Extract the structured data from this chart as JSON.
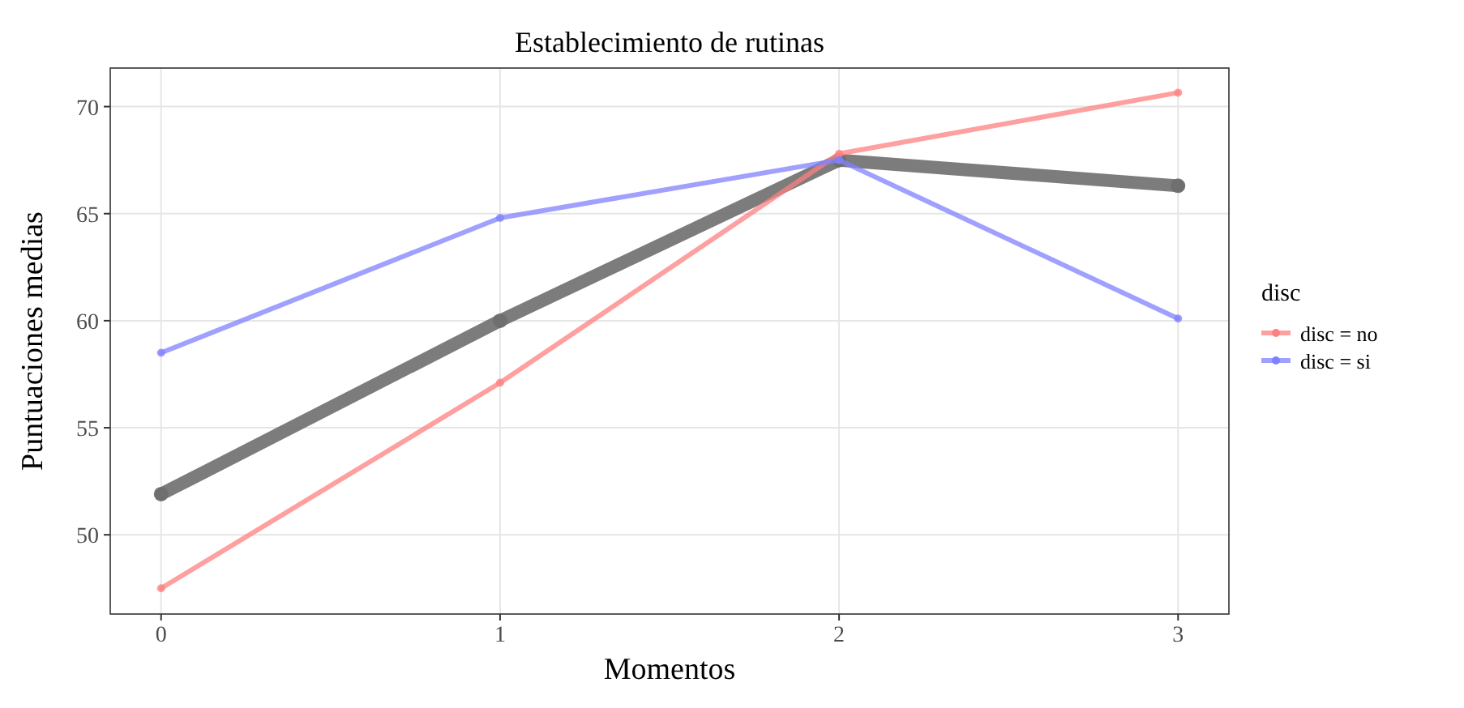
{
  "chart_data": {
    "type": "line",
    "title": "Establecimiento de rutinas",
    "xlabel": "Momentos",
    "ylabel": "Puntuaciones medias",
    "legend_title": "disc",
    "x": [
      0,
      1,
      2,
      3
    ],
    "series": [
      {
        "name": "disc = no",
        "color": "#ff8080",
        "values": [
          47.5,
          57.1,
          67.8,
          70.65
        ]
      },
      {
        "name": "disc = si",
        "color": "#8080ff",
        "values": [
          58.5,
          64.8,
          67.5,
          60.1
        ]
      },
      {
        "color": "#6e6e6e",
        "values": [
          51.9,
          60.0,
          67.5,
          66.3
        ]
      }
    ],
    "xlim": [
      -0.15,
      3.15
    ],
    "ylim": [
      46.3,
      71.8
    ],
    "xticks": [
      0,
      1,
      2,
      3
    ],
    "yticks": [
      50,
      55,
      60,
      65,
      70
    ],
    "grid": true,
    "legend": "right",
    "marker": "circle",
    "line_style": "solid"
  }
}
